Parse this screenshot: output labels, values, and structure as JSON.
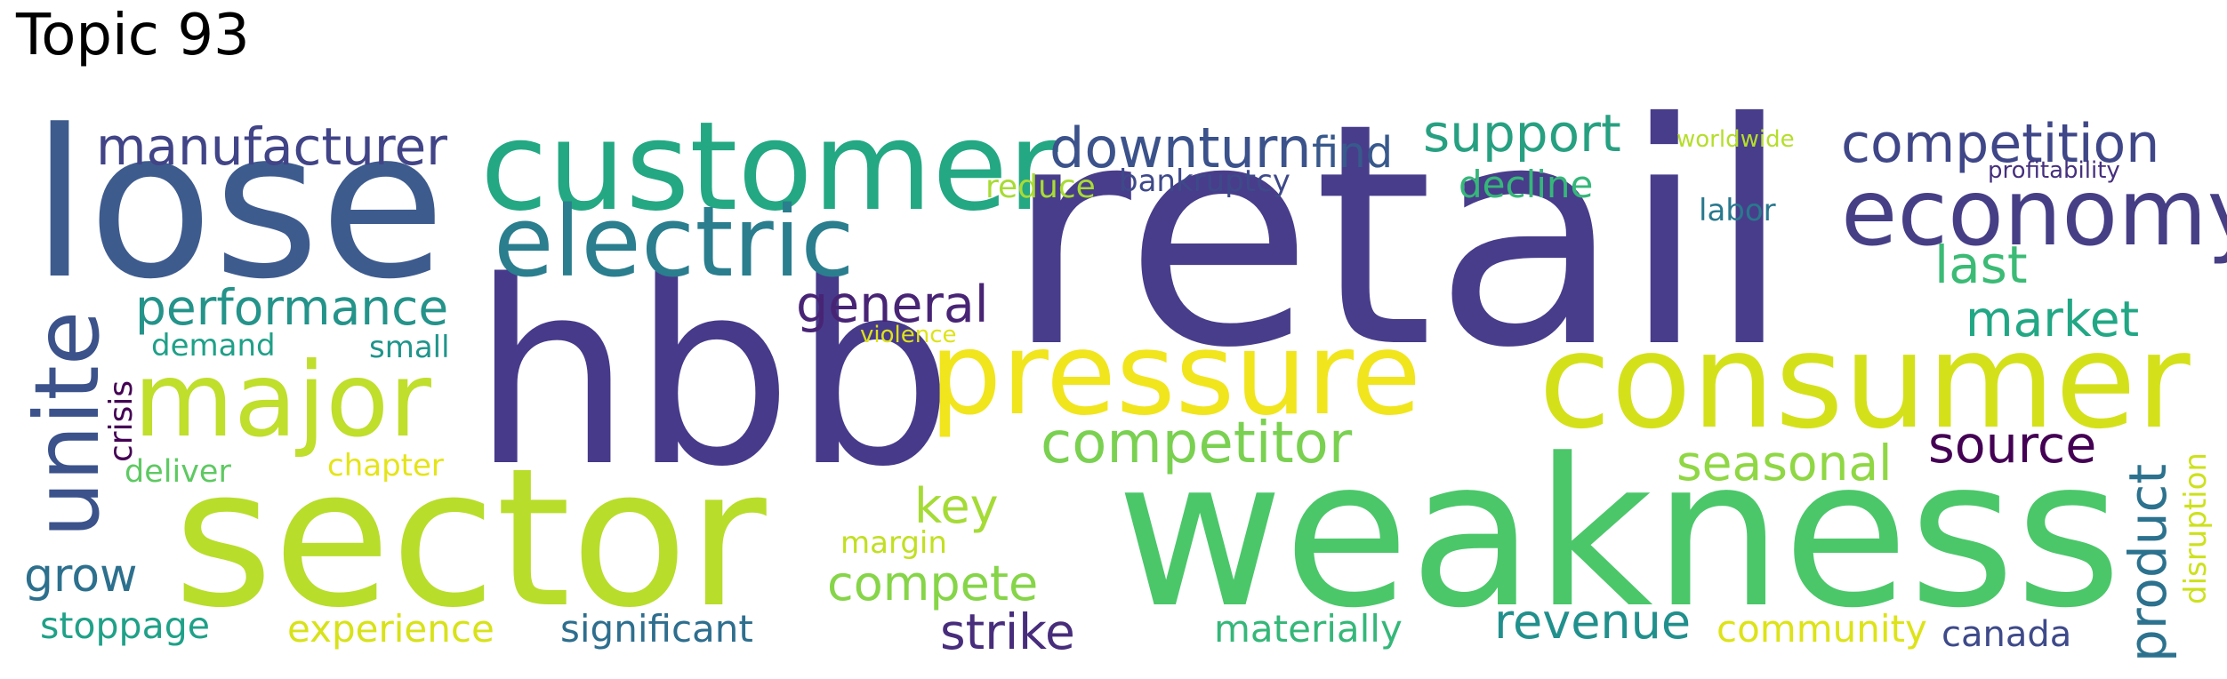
{
  "title": "Topic 93",
  "words": [
    {
      "text": "retail",
      "color": "#483d8b"
    },
    {
      "text": "weakness",
      "color": "#4bc76a"
    },
    {
      "text": "hbb",
      "color": "#473a8a"
    },
    {
      "text": "lose",
      "color": "#3e5b8e"
    },
    {
      "text": "sector",
      "color": "#b8dd2b"
    },
    {
      "text": "consumer",
      "color": "#d4e11a"
    },
    {
      "text": "customer",
      "color": "#23a883"
    },
    {
      "text": "pressure",
      "color": "#f1e51d"
    },
    {
      "text": "economy",
      "color": "#463f86"
    },
    {
      "text": "electric",
      "color": "#2a7e8e"
    },
    {
      "text": "major",
      "color": "#c0de2c"
    },
    {
      "text": "unite",
      "color": "#3b528b"
    },
    {
      "text": "manufacturer",
      "color": "#414487"
    },
    {
      "text": "downturn",
      "color": "#3b528b"
    },
    {
      "text": "competition",
      "color": "#3f4788"
    },
    {
      "text": "support",
      "color": "#27a081"
    },
    {
      "text": "performance",
      "color": "#24938a"
    },
    {
      "text": "competitor",
      "color": "#7ad151"
    },
    {
      "text": "general",
      "color": "#482475"
    },
    {
      "text": "find",
      "color": "#38598c"
    },
    {
      "text": "decline",
      "color": "#35b779"
    },
    {
      "text": "last",
      "color": "#3bbb75"
    },
    {
      "text": "market",
      "color": "#22a785"
    },
    {
      "text": "seasonal",
      "color": "#8fd744"
    },
    {
      "text": "source",
      "color": "#440154"
    },
    {
      "text": "product",
      "color": "#2c728e"
    },
    {
      "text": "revenue",
      "color": "#21908d"
    },
    {
      "text": "strike",
      "color": "#472d7b"
    },
    {
      "text": "key",
      "color": "#a5db36"
    },
    {
      "text": "compete",
      "color": "#86d549"
    },
    {
      "text": "grow",
      "color": "#2d708e"
    },
    {
      "text": "crisis",
      "color": "#440154"
    },
    {
      "text": "reduce",
      "color": "#a8db34"
    },
    {
      "text": "bankruptcy",
      "color": "#3e4989"
    },
    {
      "text": "labor",
      "color": "#2a788e"
    },
    {
      "text": "worldwide",
      "color": "#b5de2b"
    },
    {
      "text": "profitability",
      "color": "#46307e"
    },
    {
      "text": "demand",
      "color": "#1fa088"
    },
    {
      "text": "small",
      "color": "#1f958b"
    },
    {
      "text": "violence",
      "color": "#dde318"
    },
    {
      "text": "deliver",
      "color": "#5ec962"
    },
    {
      "text": "chapter",
      "color": "#e5e419"
    },
    {
      "text": "margin",
      "color": "#c2df23"
    },
    {
      "text": "stoppage",
      "color": "#1fa188"
    },
    {
      "text": "experience",
      "color": "#d8e219"
    },
    {
      "text": "significant",
      "color": "#2e6e8e"
    },
    {
      "text": "materially",
      "color": "#35b779"
    },
    {
      "text": "community",
      "color": "#dde318"
    },
    {
      "text": "canada",
      "color": "#3e4a89"
    },
    {
      "text": "disruption",
      "color": "#cde11d"
    }
  ]
}
